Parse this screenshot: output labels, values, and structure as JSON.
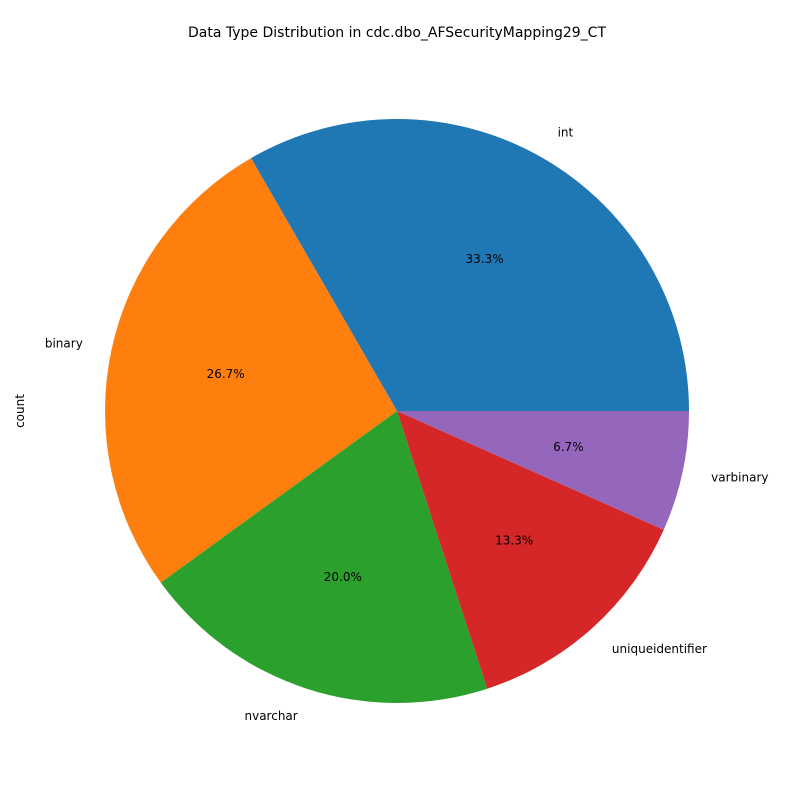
{
  "chart_data": {
    "type": "pie",
    "title": "Data Type Distribution in cdc.dbo_AFSecurityMapping29_CT",
    "ylabel": "count",
    "categories": [
      "int",
      "binary",
      "nvarchar",
      "uniqueidentifier",
      "varbinary"
    ],
    "values": [
      5,
      4,
      3,
      2,
      1
    ],
    "percent_labels": [
      "33.3%",
      "26.7%",
      "20.0%",
      "13.3%",
      "6.7%"
    ],
    "colors": [
      "#1f77b4",
      "#ff7f0e",
      "#2ca02c",
      "#d62728",
      "#9467bd"
    ],
    "start_angle_deg": 0,
    "direction": "counterclockwise",
    "legend": "none"
  }
}
